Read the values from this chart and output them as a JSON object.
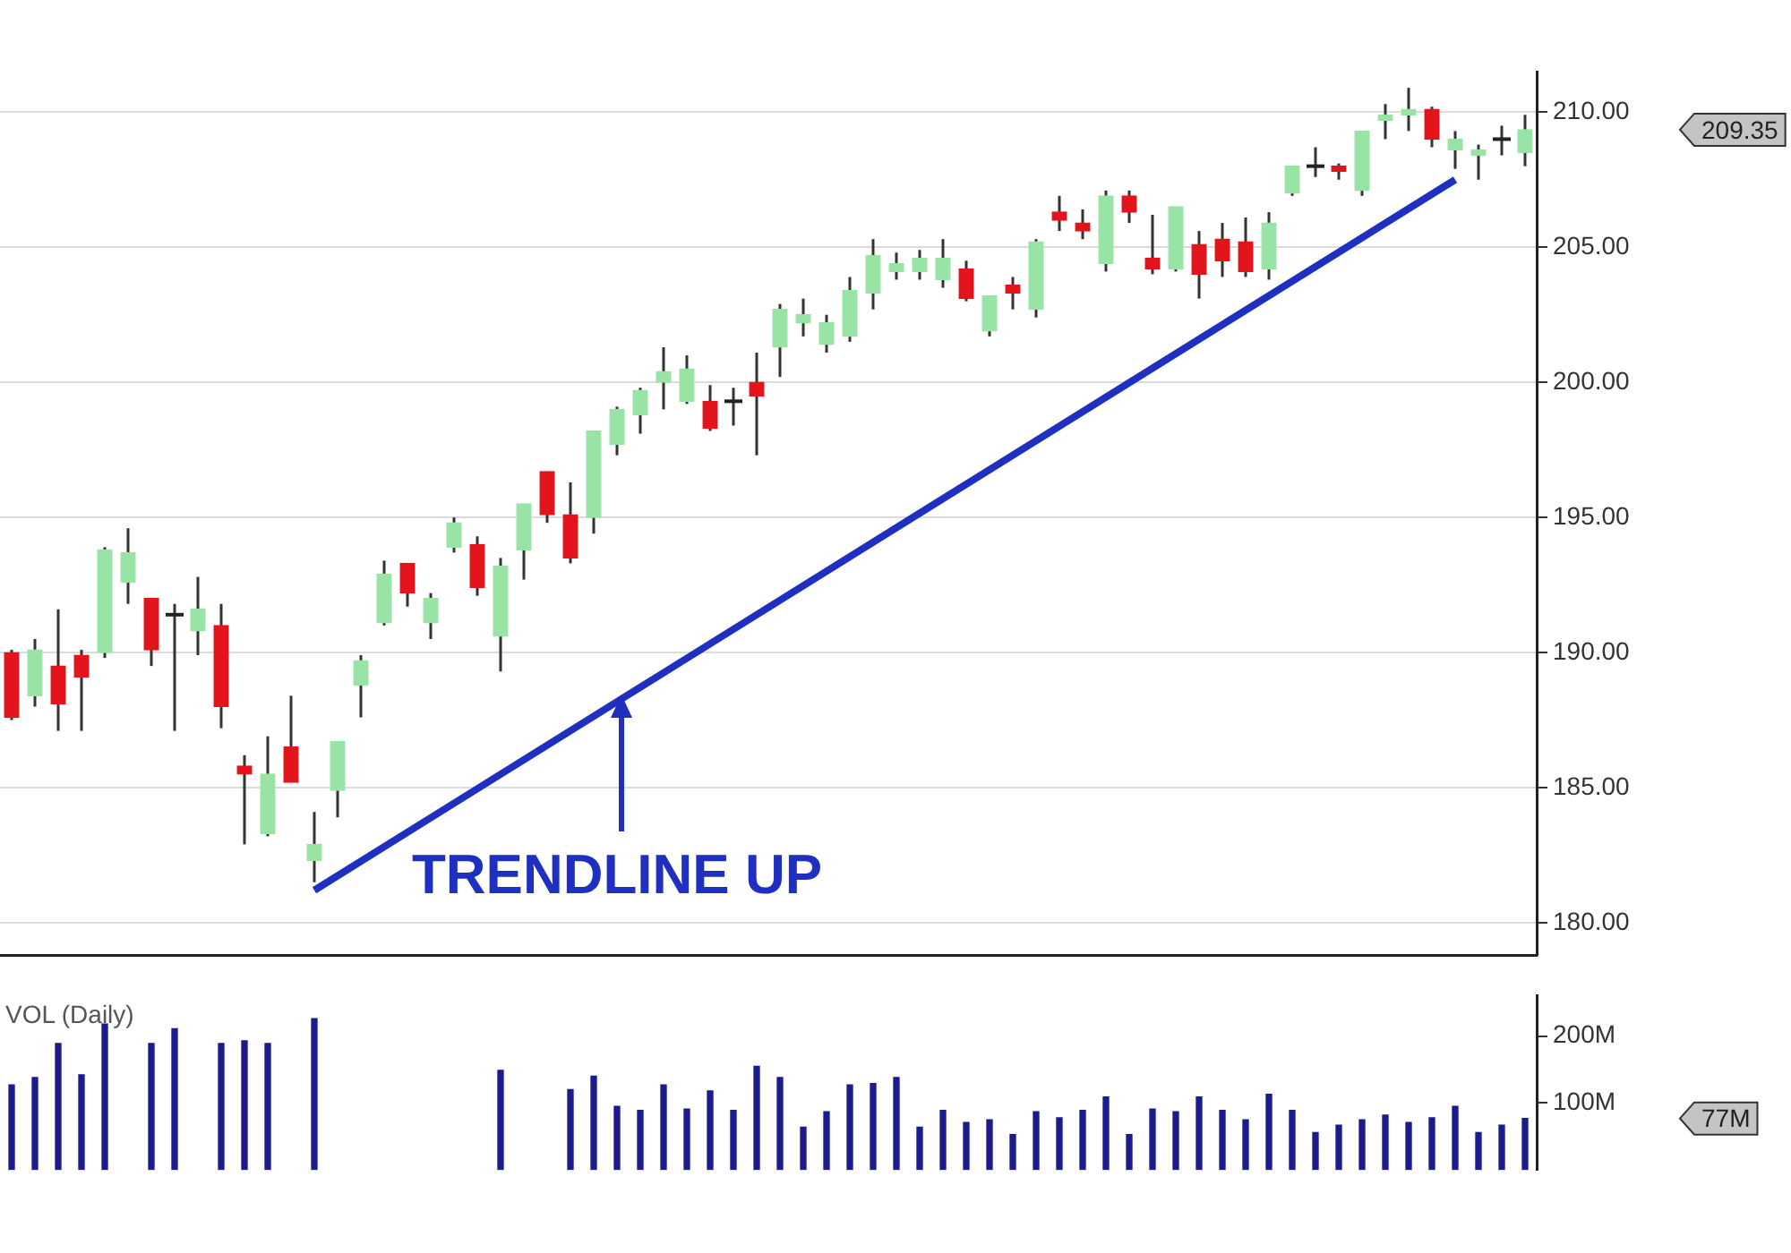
{
  "chart_data": [
    {
      "type": "candlestick",
      "categories": [
        null,
        null,
        null,
        null,
        null,
        null,
        null,
        null,
        null,
        null,
        null,
        null,
        null,
        null,
        null,
        null,
        null,
        null,
        null,
        null,
        null,
        null,
        null,
        null,
        null,
        null,
        null,
        null,
        null,
        null,
        null,
        null,
        null,
        null,
        null,
        null,
        null,
        null,
        null,
        null,
        null,
        null,
        null,
        null,
        null,
        null,
        null,
        null,
        null,
        null,
        null,
        null,
        null,
        null,
        null,
        null,
        null,
        null,
        null,
        null,
        null,
        null,
        null,
        null,
        null,
        null
      ],
      "ohlc": [
        [
          190.0,
          190.1,
          187.5,
          187.6
        ],
        [
          188.4,
          190.5,
          188.0,
          190.1
        ],
        [
          189.5,
          191.6,
          187.1,
          188.1
        ],
        [
          189.9,
          190.1,
          187.1,
          189.1
        ],
        [
          190.0,
          193.9,
          189.8,
          193.8
        ],
        [
          192.6,
          194.6,
          191.8,
          193.7
        ],
        [
          192.0,
          192.0,
          189.5,
          190.1
        ],
        [
          191.4,
          191.8,
          187.1,
          191.4
        ],
        [
          190.8,
          192.8,
          189.9,
          191.6
        ],
        [
          191.0,
          191.8,
          187.2,
          188.0
        ],
        [
          185.8,
          186.2,
          182.9,
          185.5
        ],
        [
          183.3,
          186.9,
          183.2,
          185.5
        ],
        [
          186.5,
          188.4,
          185.2,
          185.2
        ],
        [
          182.3,
          184.1,
          181.5,
          182.9
        ],
        [
          184.9,
          186.7,
          183.9,
          186.7
        ],
        [
          188.8,
          189.9,
          187.6,
          189.7
        ],
        [
          191.1,
          193.4,
          191.0,
          192.9
        ],
        [
          193.3,
          193.3,
          191.7,
          192.2
        ],
        [
          191.1,
          192.2,
          190.5,
          192.0
        ],
        [
          193.9,
          195.0,
          193.7,
          194.8
        ],
        [
          194.0,
          194.3,
          192.1,
          192.4
        ],
        [
          190.6,
          193.5,
          189.3,
          193.2
        ],
        [
          193.8,
          195.5,
          192.7,
          195.5
        ],
        [
          196.7,
          196.7,
          194.8,
          195.1
        ],
        [
          195.1,
          196.3,
          193.3,
          193.5
        ],
        [
          195.0,
          198.2,
          194.4,
          198.2
        ],
        [
          197.7,
          199.1,
          197.3,
          199.0
        ],
        [
          198.8,
          199.8,
          198.1,
          199.7
        ],
        [
          200.0,
          201.3,
          199.0,
          200.4
        ],
        [
          199.3,
          201.0,
          199.2,
          200.5
        ],
        [
          199.3,
          199.9,
          198.2,
          198.3
        ],
        [
          199.3,
          199.8,
          198.4,
          199.3
        ],
        [
          200.0,
          201.1,
          197.3,
          199.5
        ],
        [
          201.3,
          202.9,
          200.2,
          202.7
        ],
        [
          202.2,
          203.1,
          201.7,
          202.5
        ],
        [
          201.4,
          202.5,
          201.1,
          202.2
        ],
        [
          201.7,
          203.9,
          201.5,
          203.4
        ],
        [
          203.3,
          205.3,
          202.7,
          204.7
        ],
        [
          204.1,
          204.8,
          203.8,
          204.4
        ],
        [
          204.1,
          204.9,
          203.8,
          204.6
        ],
        [
          203.8,
          205.3,
          203.5,
          204.6
        ],
        [
          204.2,
          204.5,
          203.0,
          203.1
        ],
        [
          201.9,
          203.2,
          201.7,
          203.2
        ],
        [
          203.6,
          203.9,
          202.7,
          203.3
        ],
        [
          202.7,
          205.3,
          202.4,
          205.2
        ],
        [
          206.3,
          206.9,
          205.6,
          206.0
        ],
        [
          205.9,
          206.4,
          205.3,
          205.6
        ],
        [
          204.4,
          207.1,
          204.1,
          206.9
        ],
        [
          206.9,
          207.1,
          205.9,
          206.3
        ],
        [
          204.6,
          206.2,
          204.0,
          204.2
        ],
        [
          204.2,
          206.5,
          204.1,
          206.5
        ],
        [
          205.1,
          205.6,
          203.1,
          204.0
        ],
        [
          205.3,
          205.9,
          203.9,
          204.5
        ],
        [
          205.2,
          206.1,
          203.9,
          204.1
        ],
        [
          204.2,
          206.3,
          203.8,
          205.9
        ],
        [
          207.0,
          208.0,
          206.9,
          208.0
        ],
        [
          208.0,
          208.7,
          207.6,
          208.0
        ],
        [
          208.0,
          208.1,
          207.5,
          207.8
        ],
        [
          207.1,
          209.3,
          206.9,
          209.3
        ],
        [
          209.7,
          210.3,
          209.0,
          209.9
        ],
        [
          209.9,
          210.9,
          209.3,
          210.1
        ],
        [
          210.1,
          210.2,
          208.7,
          209.0
        ],
        [
          208.6,
          209.3,
          207.9,
          209.0
        ],
        [
          208.4,
          208.8,
          207.5,
          208.6
        ],
        [
          209.0,
          209.5,
          208.4,
          209.0
        ],
        [
          208.5,
          209.9,
          208.0,
          209.35
        ]
      ],
      "colors": [
        "#e3141b",
        "#98e4a4",
        "#e3141b",
        "#e3141b",
        "#98e4a4",
        "#98e4a4",
        "#e3141b",
        "#222222",
        "#98e4a4",
        "#e3141b",
        "#e3141b",
        "#98e4a4",
        "#e3141b",
        "#98e4a4",
        "#98e4a4",
        "#98e4a4",
        "#98e4a4",
        "#e3141b",
        "#98e4a4",
        "#98e4a4",
        "#e3141b",
        "#98e4a4",
        "#98e4a4",
        "#e3141b",
        "#e3141b",
        "#98e4a4",
        "#98e4a4",
        "#98e4a4",
        "#98e4a4",
        "#98e4a4",
        "#e3141b",
        "#222222",
        "#e3141b",
        "#98e4a4",
        "#98e4a4",
        "#98e4a4",
        "#98e4a4",
        "#98e4a4",
        "#98e4a4",
        "#98e4a4",
        "#98e4a4",
        "#e3141b",
        "#98e4a4",
        "#e3141b",
        "#98e4a4",
        "#e3141b",
        "#e3141b",
        "#98e4a4",
        "#e3141b",
        "#e3141b",
        "#98e4a4",
        "#e3141b",
        "#e3141b",
        "#e3141b",
        "#98e4a4",
        "#98e4a4",
        "#222222",
        "#e3141b",
        "#98e4a4",
        "#98e4a4",
        "#98e4a4",
        "#e3141b",
        "#98e4a4",
        "#98e4a4",
        "#222222",
        "#98e4a4"
      ],
      "series": [
        {
          "type": "line",
          "color": "#1f2fbf",
          "values": [
            null,
            null,
            null,
            null,
            null,
            null,
            null,
            null,
            null,
            null,
            null,
            null,
            null,
            181.2,
            null,
            null,
            null,
            null,
            null,
            null,
            null,
            null,
            null,
            null,
            null,
            null,
            null,
            null,
            null,
            null,
            null,
            null,
            null,
            null,
            null,
            null,
            null,
            null,
            null,
            null,
            null,
            null,
            null,
            null,
            null,
            null,
            null,
            null,
            null,
            null,
            null,
            null,
            null,
            null,
            null,
            null,
            null,
            null,
            null,
            null,
            null,
            null,
            207.5,
            null,
            null,
            null
          ]
        }
      ],
      "ylim": [
        178.8,
        211.5
      ],
      "yticks": [
        {
          "value": 180,
          "label": "180.00"
        },
        {
          "value": 185,
          "label": "185.00"
        },
        {
          "value": 190,
          "label": "190.00"
        },
        {
          "value": 195,
          "label": "195.00"
        },
        {
          "value": 200,
          "label": "200.00"
        },
        {
          "value": 205,
          "label": "205.00"
        },
        {
          "value": 210,
          "label": "210.00"
        }
      ],
      "grid": "y",
      "tick_labels": "y",
      "legend": false,
      "annotations": [
        "TRENDLINE UP",
        "209.35"
      ]
    },
    {
      "type": "bar",
      "title": "VOL (Daily)",
      "categories": [
        null,
        null,
        null,
        null,
        null,
        null,
        null,
        null,
        null,
        null,
        null,
        null,
        null,
        null,
        null,
        null,
        null,
        null,
        null,
        null,
        null,
        null,
        null,
        null,
        null,
        null,
        null,
        null,
        null,
        null,
        null,
        null,
        null,
        null,
        null,
        null,
        null,
        null,
        null,
        null,
        null,
        null,
        null,
        null,
        null,
        null,
        null,
        null,
        null,
        null,
        null,
        null,
        null,
        null,
        null,
        null,
        null,
        null,
        null,
        null,
        null,
        null,
        null,
        null,
        null,
        null
      ],
      "values": [
        127,
        138,
        189,
        142,
        218,
        null,
        189,
        211,
        null,
        189,
        193,
        189,
        null,
        226,
        null,
        null,
        null,
        null,
        null,
        null,
        null,
        149,
        null,
        null,
        120,
        140,
        95,
        89,
        127,
        91,
        118,
        89,
        155,
        138,
        64,
        87,
        127,
        129,
        138,
        64,
        89,
        71,
        75,
        53,
        87,
        78,
        89,
        109,
        53,
        91,
        87,
        109,
        89,
        75,
        113,
        89,
        56,
        67,
        75,
        82,
        71,
        78,
        95,
        56,
        67,
        77
      ],
      "color": "#1b1b8f",
      "ylim": [
        0,
        260
      ],
      "yticks": [
        {
          "value": 100,
          "label": "100M"
        },
        {
          "value": 200,
          "label": "200M"
        }
      ],
      "tick_labels": "y",
      "legend": false,
      "annotations": [
        "77M"
      ]
    }
  ]
}
